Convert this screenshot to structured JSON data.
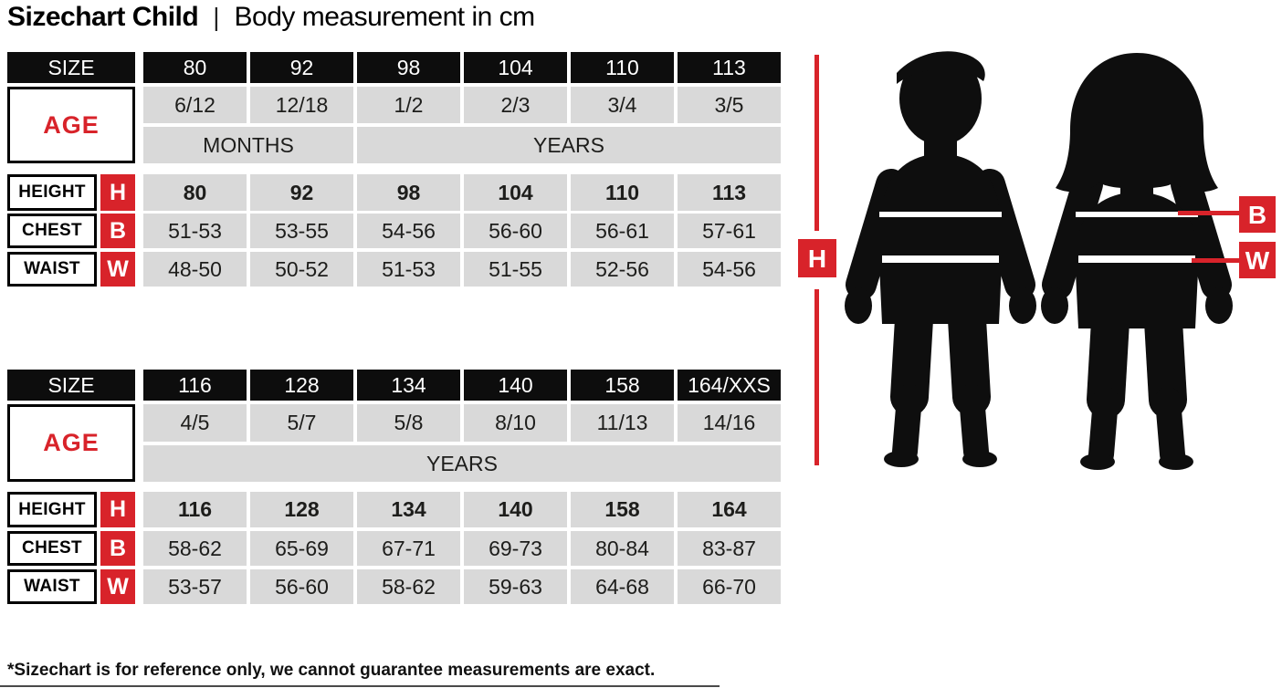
{
  "title": {
    "main": "Sizechart Child",
    "separator": "|",
    "subtitle": "Body measurement in cm"
  },
  "colors": {
    "accent_red": "#d8232a",
    "cell_gray": "#d9d9d9",
    "cell_black": "#0d0d0d"
  },
  "labels": {
    "size": "SIZE",
    "age": "AGE",
    "height": "HEIGHT",
    "chest": "CHEST",
    "waist": "WAIST",
    "h": "H",
    "b": "B",
    "w": "W"
  },
  "table1": {
    "sizes": [
      "80",
      "92",
      "98",
      "104",
      "110",
      "113"
    ],
    "ages": [
      "6/12",
      "12/18",
      "1/2",
      "2/3",
      "3/4",
      "3/5"
    ],
    "age_units": [
      {
        "label": "MONTHS",
        "span": 2
      },
      {
        "label": "YEARS",
        "span": 4
      }
    ],
    "heights": [
      "80",
      "92",
      "98",
      "104",
      "110",
      "113"
    ],
    "chests": [
      "51-53",
      "53-55",
      "54-56",
      "56-60",
      "56-61",
      "57-61"
    ],
    "waists": [
      "48-50",
      "50-52",
      "51-53",
      "51-55",
      "52-56",
      "54-56"
    ]
  },
  "table2": {
    "sizes": [
      "116",
      "128",
      "134",
      "140",
      "158",
      "164/XXS"
    ],
    "ages": [
      "4/5",
      "5/7",
      "5/8",
      "8/10",
      "11/13",
      "14/16"
    ],
    "age_units": [
      {
        "label": "YEARS",
        "span": 6
      }
    ],
    "heights": [
      "116",
      "128",
      "134",
      "140",
      "158",
      "164"
    ],
    "chests": [
      "58-62",
      "65-69",
      "67-71",
      "69-73",
      "80-84",
      "83-87"
    ],
    "waists": [
      "53-57",
      "56-60",
      "58-62",
      "59-63",
      "64-68",
      "66-70"
    ]
  },
  "footnote": "*Sizechart is for reference only, we cannot guarantee measurements are exact."
}
